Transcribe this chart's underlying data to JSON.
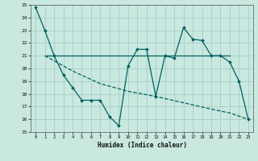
{
  "line1_x": [
    0,
    1,
    2,
    3,
    4,
    5,
    6,
    7,
    8,
    9,
    10,
    11,
    12,
    13,
    14,
    15,
    16,
    17,
    18,
    19,
    20,
    21,
    22,
    23
  ],
  "line1_y": [
    24.8,
    23.0,
    21.0,
    19.5,
    18.5,
    17.5,
    17.5,
    17.5,
    16.2,
    15.5,
    20.2,
    21.5,
    21.5,
    17.8,
    21.0,
    20.8,
    23.2,
    22.3,
    22.2,
    21.0,
    21.0,
    20.5,
    19.0,
    16.0
  ],
  "line2_x": [
    1,
    21
  ],
  "line2_y": [
    21.0,
    21.0
  ],
  "line3_x": [
    1,
    4,
    7,
    10,
    13,
    16,
    19,
    21,
    23
  ],
  "line3_y": [
    21.0,
    19.8,
    18.8,
    18.2,
    17.8,
    17.3,
    16.8,
    16.5,
    16.0
  ],
  "color": "#006060",
  "bg_color": "#c8e8e0",
  "grid_color": "#a0c8c0",
  "xlabel": "Humidex (Indice chaleur)",
  "ylim": [
    15,
    25
  ],
  "xlim": [
    -0.5,
    23.5
  ],
  "yticks": [
    15,
    16,
    17,
    18,
    19,
    20,
    21,
    22,
    23,
    24,
    25
  ],
  "xticks": [
    0,
    1,
    2,
    3,
    4,
    5,
    6,
    7,
    8,
    9,
    10,
    11,
    12,
    13,
    14,
    15,
    16,
    17,
    18,
    19,
    20,
    21,
    22,
    23
  ]
}
